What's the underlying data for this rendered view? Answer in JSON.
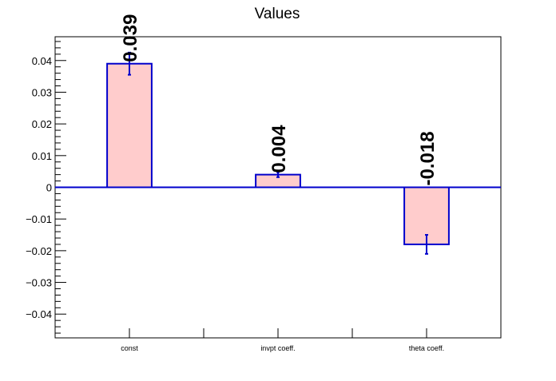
{
  "chart_data": {
    "type": "bar",
    "title": "Values",
    "categories": [
      "const",
      "invpt coeff.",
      "theta coeff."
    ],
    "values": [
      0.039,
      0.004,
      -0.018
    ],
    "errors": [
      0.0035,
      0.0008,
      0.003
    ],
    "value_labels": [
      "0.039",
      "0.004",
      "-0.018"
    ],
    "ylim": [
      -0.0475,
      0.0475
    ],
    "yticks": [
      -0.04,
      -0.03,
      -0.02,
      -0.01,
      0,
      0.01,
      0.02,
      0.03,
      0.04
    ],
    "ytick_labels": [
      "−0.04",
      "−0.03",
      "−0.02",
      "−0.01",
      "0",
      "0.01",
      "0.02",
      "0.03",
      "0.04"
    ],
    "xlabel": "",
    "ylabel": "",
    "colors": {
      "bar_fill": "#ffcccc",
      "bar_edge": "#0000cc",
      "zero_line": "#0000cc",
      "axis": "#000000",
      "text": "#000000"
    },
    "grid": false,
    "legend": "none"
  }
}
